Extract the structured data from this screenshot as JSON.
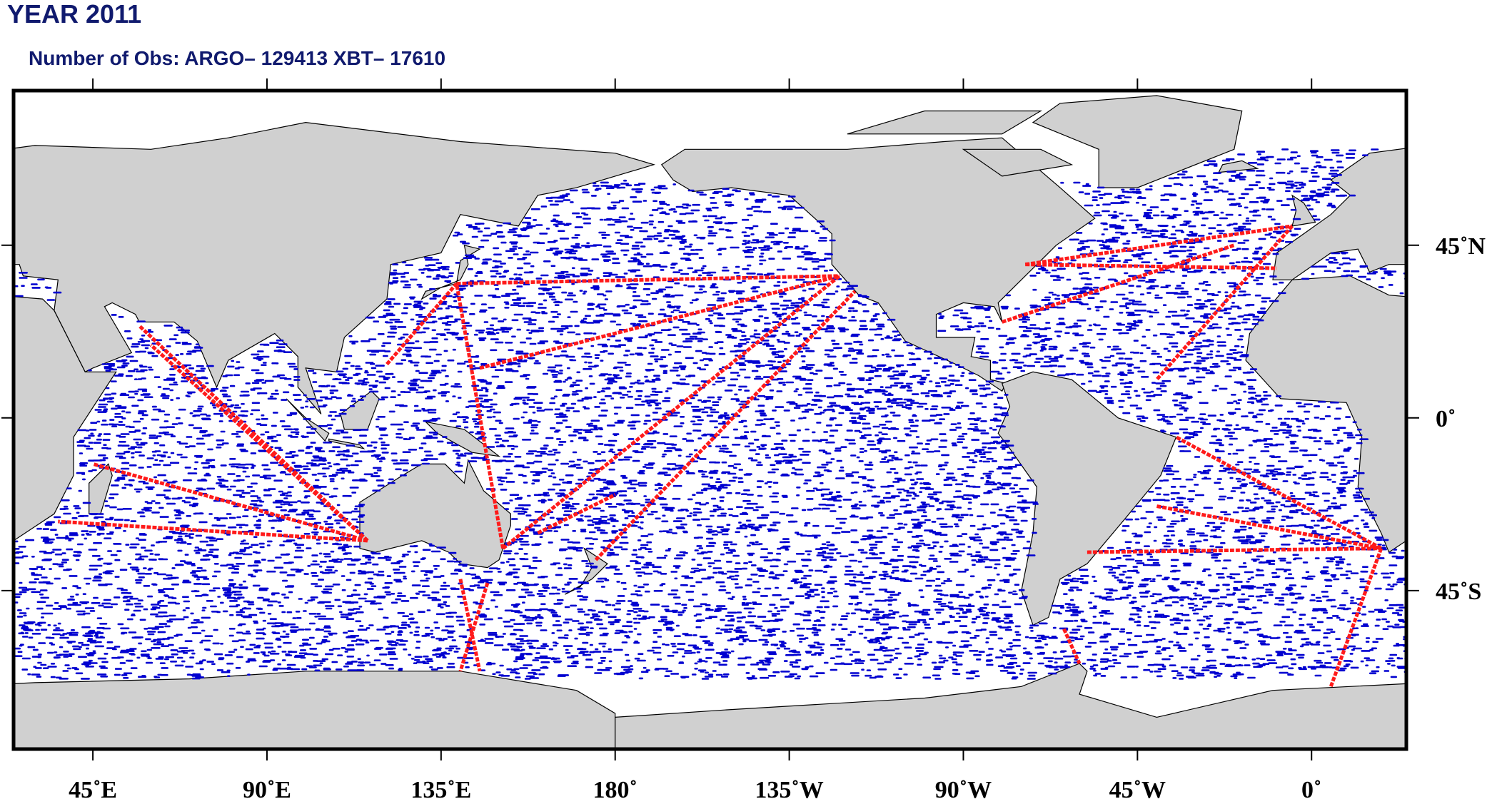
{
  "header": {
    "title": "YEAR 2011",
    "subtitle": "Number of Obs: ARGO– 129413 XBT– 17610"
  },
  "map": {
    "x_labels": [
      "45˚E",
      "90˚E",
      "135˚E",
      "180˚",
      "135˚W",
      "90˚W",
      "45˚W",
      "0˚"
    ],
    "y_labels": [
      "45˚N",
      "0˚",
      "45˚S"
    ]
  }
}
